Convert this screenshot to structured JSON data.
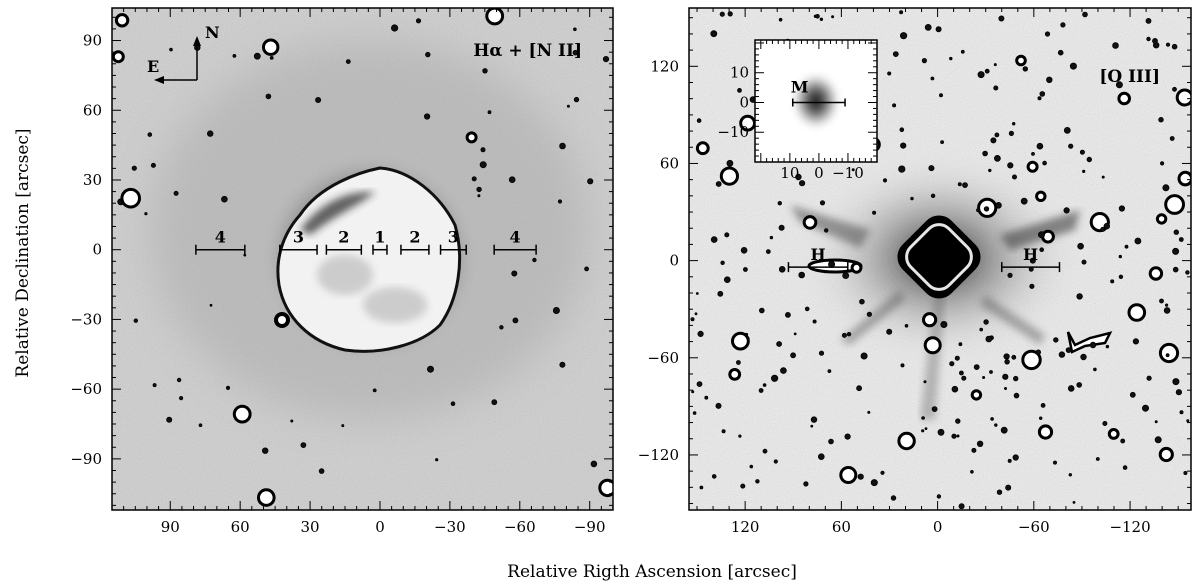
{
  "figure": {
    "ylabel": "Relative Declination [arcsec]",
    "xlabel": "Relative Rigth Ascension [arcsec]"
  },
  "left_panel": {
    "label": "Hα + [N II]",
    "compass": {
      "north": "N",
      "east": "E"
    },
    "x_ticks": [
      "90",
      "60",
      "30",
      "0",
      "−30",
      "−60",
      "−90"
    ],
    "y_ticks": [
      "90",
      "60",
      "30",
      "0",
      "−30",
      "−60",
      "−90"
    ],
    "x_range": [
      115,
      -100
    ],
    "y_range": [
      -112,
      104
    ],
    "regions": [
      {
        "label": "4",
        "ra": [
          79,
          58
        ],
        "dec": 0
      },
      {
        "label": "3",
        "ra": [
          43,
          27
        ],
        "dec": 0
      },
      {
        "label": "2",
        "ra": [
          23,
          8
        ],
        "dec": 0
      },
      {
        "label": "1",
        "ra": [
          3,
          -3
        ],
        "dec": 0
      },
      {
        "label": "2",
        "ra": [
          -9,
          -21
        ],
        "dec": 0
      },
      {
        "label": "3",
        "ra": [
          -26,
          -37
        ],
        "dec": 0
      },
      {
        "label": "4",
        "ra": [
          -49,
          -67
        ],
        "dec": 0
      }
    ]
  },
  "right_panel": {
    "label": "[O III]",
    "x_ticks": [
      "120",
      "60",
      "0",
      "−60",
      "−120"
    ],
    "y_ticks": [
      "120",
      "60",
      "0",
      "−60",
      "−120"
    ],
    "x_range": [
      155,
      -158
    ],
    "y_range": [
      -154,
      156
    ],
    "regions": [
      {
        "label": "H",
        "ra": [
          93,
          56
        ],
        "dec": -4
      },
      {
        "label": "H",
        "ra": [
          -40,
          -76
        ],
        "dec": -4
      }
    ],
    "inset": {
      "label": "M",
      "x_ticks": [
        "10",
        "0",
        "−10"
      ],
      "y_ticks": [
        "10",
        "0",
        "−10"
      ],
      "x_range": [
        22,
        -20
      ],
      "y_range": [
        -20,
        21
      ],
      "region_ra": [
        9,
        -9
      ]
    }
  }
}
